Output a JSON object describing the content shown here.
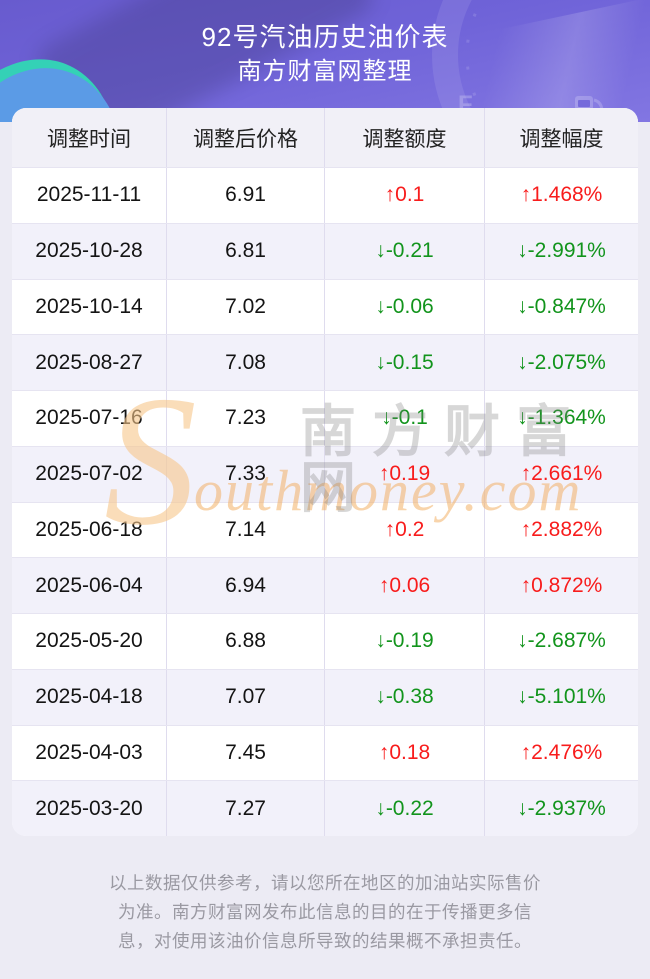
{
  "header": {
    "title": "92号汽油历史油价表",
    "subtitle": "南方财富网整理"
  },
  "table": {
    "columns": [
      "调整时间",
      "调整后价格",
      "调整额度",
      "调整幅度"
    ],
    "rows": [
      {
        "date": "2025-11-11",
        "price": "6.91",
        "change": "↑0.1",
        "percent": "↑1.468%",
        "direction": "up"
      },
      {
        "date": "2025-10-28",
        "price": "6.81",
        "change": "↓-0.21",
        "percent": "↓-2.991%",
        "direction": "down"
      },
      {
        "date": "2025-10-14",
        "price": "7.02",
        "change": "↓-0.06",
        "percent": "↓-0.847%",
        "direction": "down"
      },
      {
        "date": "2025-08-27",
        "price": "7.08",
        "change": "↓-0.15",
        "percent": "↓-2.075%",
        "direction": "down"
      },
      {
        "date": "2025-07-16",
        "price": "7.23",
        "change": "↓-0.1",
        "percent": "↓-1.364%",
        "direction": "down"
      },
      {
        "date": "2025-07-02",
        "price": "7.33",
        "change": "↑0.19",
        "percent": "↑2.661%",
        "direction": "up"
      },
      {
        "date": "2025-06-18",
        "price": "7.14",
        "change": "↑0.2",
        "percent": "↑2.882%",
        "direction": "up"
      },
      {
        "date": "2025-06-04",
        "price": "6.94",
        "change": "↑0.06",
        "percent": "↑0.872%",
        "direction": "up"
      },
      {
        "date": "2025-05-20",
        "price": "6.88",
        "change": "↓-0.19",
        "percent": "↓-2.687%",
        "direction": "down"
      },
      {
        "date": "2025-04-18",
        "price": "7.07",
        "change": "↓-0.38",
        "percent": "↓-5.101%",
        "direction": "down"
      },
      {
        "date": "2025-04-03",
        "price": "7.45",
        "change": "↑0.18",
        "percent": "↑2.476%",
        "direction": "up"
      },
      {
        "date": "2025-03-20",
        "price": "7.27",
        "change": "↓-0.22",
        "percent": "↓-2.937%",
        "direction": "down"
      }
    ]
  },
  "chart_data": {
    "type": "table",
    "title": "92号汽油历史油价表",
    "subtitle": "南方财富网整理",
    "columns": [
      "调整时间",
      "调整后价格",
      "调整额度",
      "调整幅度"
    ],
    "dates": [
      "2025-11-11",
      "2025-10-28",
      "2025-10-14",
      "2025-08-27",
      "2025-07-16",
      "2025-07-02",
      "2025-06-18",
      "2025-06-04",
      "2025-05-20",
      "2025-04-18",
      "2025-04-03",
      "2025-03-20"
    ],
    "prices": [
      6.91,
      6.81,
      7.02,
      7.08,
      7.23,
      7.33,
      7.14,
      6.94,
      6.88,
      7.07,
      7.45,
      7.27
    ],
    "changes": [
      0.1,
      -0.21,
      -0.06,
      -0.15,
      -0.1,
      0.19,
      0.2,
      0.06,
      -0.19,
      -0.38,
      0.18,
      -0.22
    ],
    "percents": [
      1.468,
      -2.991,
      -0.847,
      -2.075,
      -1.364,
      2.661,
      2.882,
      0.872,
      -2.687,
      -5.101,
      2.476,
      -2.937
    ]
  },
  "watermark": {
    "big_s": "S",
    "english": "outhmoney.com",
    "chinese": "南方财富网"
  },
  "footer": {
    "lines": [
      "以上数据仅供参考，请以您所在地区的加油站实际售价",
      "为准。南方财富网发布此信息的目的在于传播更多信",
      "息，对使用该油价信息所导致的结果概不承担责任。"
    ]
  },
  "colors": {
    "up_red": "#F81C1C",
    "down_green": "#12941C",
    "banner_purple": "#6F63D8",
    "corner_teal": "#34D1B6",
    "corner_blue": "#5B9BE6"
  }
}
